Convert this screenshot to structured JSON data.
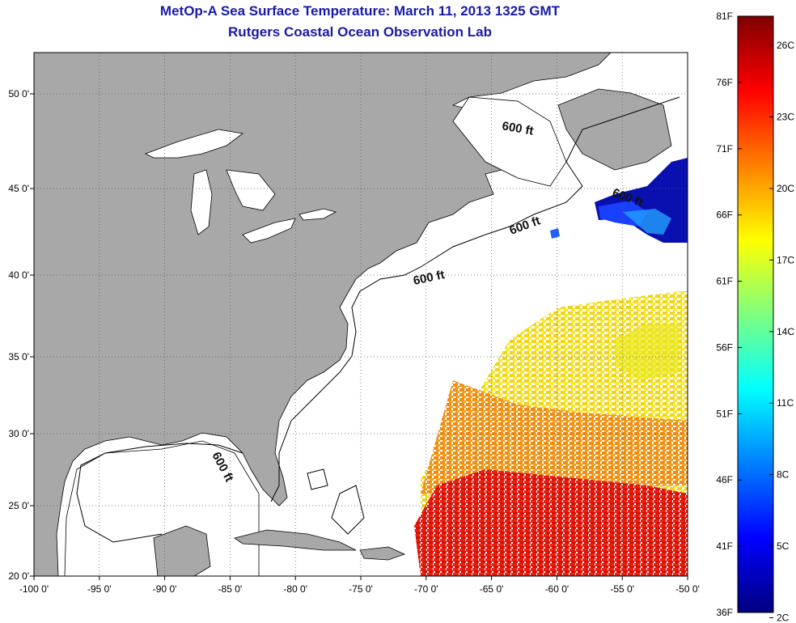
{
  "title": "MetOp-A Sea Surface Temperature:  March 11, 2013 1325 GMT",
  "subtitle": "Rutgers Coastal Ocean Observation Lab",
  "map": {
    "lon_range": [
      -100,
      -50
    ],
    "lat_range": [
      20,
      53
    ],
    "grid": true,
    "land_color": "#a8a8a8",
    "lon_ticks": [
      "-100 0'",
      "-95 0'",
      "-90 0'",
      "-85 0'",
      "-80 0'",
      "-75 0'",
      "-70 0'",
      "-65 0'",
      "-60 0'",
      "-55 0'",
      "-50 0'"
    ],
    "lat_ticks": [
      "50 0'",
      "45 0'",
      "40 0'",
      "35 0'",
      "30 0'",
      "25 0'",
      "20 0'"
    ],
    "contour_labels": [
      "600 ft",
      "600 ft",
      "600 ft",
      "600 ft",
      "600 ft"
    ]
  },
  "colorbar": {
    "f_labels": [
      "81F",
      "76F",
      "71F",
      "66F",
      "61F",
      "56F",
      "51F",
      "46F",
      "41F",
      "36F"
    ],
    "c_labels": [
      "26C",
      "23C",
      "20C",
      "17C",
      "14C",
      "11C",
      "8C",
      "5C",
      "2C"
    ],
    "colormap": [
      "#00007f",
      "#0000ff",
      "#007fff",
      "#00ffff",
      "#7fff7f",
      "#ffff00",
      "#ff7f00",
      "#ff0000",
      "#7f0000"
    ]
  }
}
